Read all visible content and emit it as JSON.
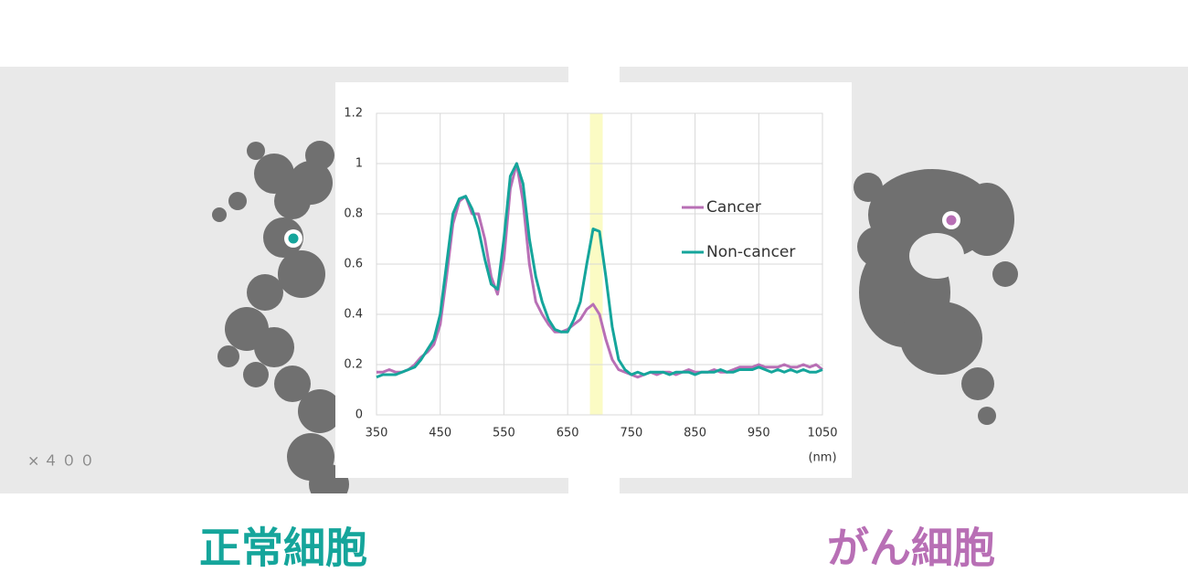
{
  "chart_data": {
    "type": "line",
    "magnification": "×４００",
    "captions": [
      {
        "text": "正常細胞",
        "color": "#15a59b"
      },
      {
        "text": "がん細胞",
        "color": "#b86fb5"
      }
    ],
    "x_label": "(nm)",
    "x": [
      350,
      360,
      370,
      380,
      390,
      400,
      410,
      420,
      430,
      440,
      450,
      460,
      470,
      480,
      490,
      500,
      510,
      520,
      530,
      540,
      550,
      560,
      570,
      580,
      590,
      600,
      610,
      620,
      630,
      640,
      650,
      660,
      670,
      680,
      690,
      700,
      710,
      720,
      730,
      740,
      750,
      760,
      770,
      780,
      790,
      800,
      810,
      820,
      830,
      840,
      850,
      860,
      870,
      880,
      890,
      900,
      910,
      920,
      930,
      940,
      950,
      960,
      970,
      980,
      990,
      1000,
      1010,
      1020,
      1030,
      1040,
      1050
    ],
    "series": [
      {
        "name": "Cancer",
        "color": "#b86fb5",
        "values": [
          0.17,
          0.17,
          0.18,
          0.17,
          0.17,
          0.18,
          0.2,
          0.23,
          0.25,
          0.28,
          0.36,
          0.55,
          0.76,
          0.85,
          0.87,
          0.8,
          0.8,
          0.7,
          0.55,
          0.48,
          0.62,
          0.9,
          1.0,
          0.85,
          0.6,
          0.45,
          0.4,
          0.36,
          0.33,
          0.33,
          0.34,
          0.36,
          0.38,
          0.42,
          0.44,
          0.4,
          0.3,
          0.22,
          0.18,
          0.17,
          0.16,
          0.15,
          0.16,
          0.17,
          0.16,
          0.17,
          0.17,
          0.16,
          0.17,
          0.18,
          0.17,
          0.17,
          0.17,
          0.18,
          0.17,
          0.17,
          0.18,
          0.19,
          0.19,
          0.19,
          0.2,
          0.19,
          0.19,
          0.19,
          0.2,
          0.19,
          0.19,
          0.2,
          0.19,
          0.2,
          0.18
        ]
      },
      {
        "name": "Non-cancer",
        "color": "#15a59b",
        "values": [
          0.15,
          0.16,
          0.16,
          0.16,
          0.17,
          0.18,
          0.19,
          0.22,
          0.26,
          0.3,
          0.4,
          0.6,
          0.8,
          0.86,
          0.87,
          0.82,
          0.74,
          0.62,
          0.52,
          0.5,
          0.7,
          0.95,
          1.0,
          0.92,
          0.7,
          0.55,
          0.45,
          0.38,
          0.34,
          0.33,
          0.33,
          0.38,
          0.45,
          0.6,
          0.74,
          0.73,
          0.55,
          0.35,
          0.22,
          0.18,
          0.16,
          0.17,
          0.16,
          0.17,
          0.17,
          0.17,
          0.16,
          0.17,
          0.17,
          0.17,
          0.16,
          0.17,
          0.17,
          0.17,
          0.18,
          0.17,
          0.17,
          0.18,
          0.18,
          0.18,
          0.19,
          0.18,
          0.17,
          0.18,
          0.17,
          0.18,
          0.17,
          0.18,
          0.17,
          0.17,
          0.18
        ]
      }
    ],
    "highlight": {
      "range": [
        685,
        705
      ],
      "color": "#fbfbc4"
    },
    "xlim": [
      350,
      1050
    ],
    "xticks": [
      350,
      450,
      550,
      650,
      750,
      850,
      950,
      1050
    ],
    "ylim": [
      0,
      1.2
    ],
    "yticks": [
      0,
      0.2,
      0.4,
      0.6,
      0.8,
      1,
      1.2
    ],
    "grid": true
  }
}
